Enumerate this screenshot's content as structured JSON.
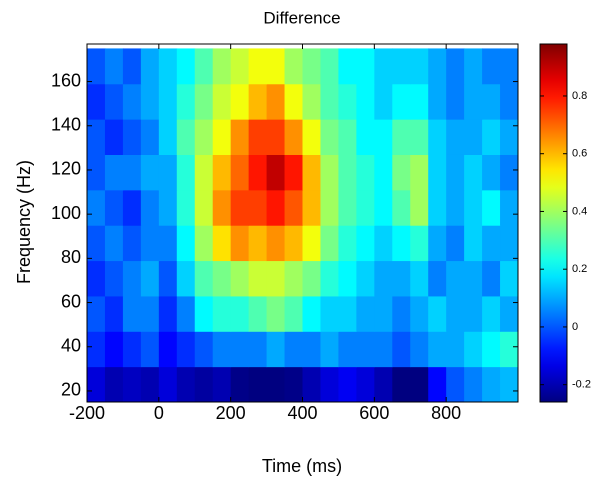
{
  "chart_data": {
    "type": "heatmap",
    "title": "Difference",
    "xlabel": "Time (ms)",
    "ylabel": "Frequency (Hz)",
    "colormap": "jet",
    "x": [
      -175,
      -125,
      -75,
      -25,
      25,
      75,
      125,
      175,
      225,
      275,
      325,
      375,
      425,
      475,
      525,
      575,
      625,
      675,
      725,
      775,
      825,
      875,
      925,
      975
    ],
    "y": [
      23,
      39,
      55,
      71,
      87,
      103,
      119,
      135,
      151,
      167
    ],
    "z": [
      [
        -0.15,
        -0.2,
        -0.18,
        -0.2,
        -0.15,
        -0.2,
        -0.22,
        -0.2,
        -0.25,
        -0.28,
        -0.28,
        -0.25,
        -0.2,
        -0.15,
        -0.12,
        -0.15,
        -0.2,
        -0.3,
        -0.28,
        -0.1,
        0.0,
        0.05,
        0.1,
        0.12
      ],
      [
        -0.05,
        -0.1,
        -0.05,
        0,
        -0.1,
        -0.05,
        0,
        0.05,
        0.05,
        0.05,
        0.1,
        0.05,
        0.05,
        0.1,
        0.05,
        0.05,
        0.05,
        0.0,
        0.05,
        0.1,
        0.1,
        0.15,
        0.2,
        0.25
      ],
      [
        0,
        -0.05,
        0.05,
        0.05,
        -0.05,
        0.05,
        0.2,
        0.25,
        0.25,
        0.3,
        0.35,
        0.3,
        0.2,
        0.15,
        0.15,
        0.1,
        0.1,
        0.05,
        0.1,
        0.15,
        0.1,
        0.1,
        0.15,
        0.1
      ],
      [
        -0.05,
        0,
        0.05,
        0.1,
        0,
        0.15,
        0.3,
        0.35,
        0.4,
        0.45,
        0.45,
        0.4,
        0.35,
        0.25,
        0.2,
        0.15,
        0.1,
        0.1,
        0.15,
        0.05,
        0.1,
        0.1,
        0.05,
        0.15
      ],
      [
        0,
        0.05,
        0,
        0.05,
        0.05,
        0.2,
        0.4,
        0.55,
        0.65,
        0.6,
        0.65,
        0.6,
        0.5,
        0.35,
        0.25,
        0.2,
        0.15,
        0.2,
        0.25,
        0.1,
        0.05,
        0.15,
        0.1,
        0.1
      ],
      [
        0.05,
        0,
        -0.05,
        0.05,
        0.1,
        0.25,
        0.45,
        0.65,
        0.75,
        0.75,
        0.8,
        0.72,
        0.6,
        0.4,
        0.3,
        0.25,
        0.2,
        0.3,
        0.4,
        0.15,
        0.1,
        0.15,
        0.2,
        0.1
      ],
      [
        0,
        0.05,
        0.05,
        0.1,
        0.1,
        0.25,
        0.45,
        0.6,
        0.7,
        0.8,
        0.9,
        0.8,
        0.6,
        0.4,
        0.3,
        0.25,
        0.2,
        0.35,
        0.4,
        0.15,
        0.1,
        0.15,
        0.1,
        0.05
      ],
      [
        0,
        -0.05,
        0,
        0.05,
        0.15,
        0.3,
        0.4,
        0.5,
        0.65,
        0.75,
        0.75,
        0.65,
        0.5,
        0.35,
        0.3,
        0.2,
        0.2,
        0.3,
        0.3,
        0.15,
        0.1,
        0.1,
        0.15,
        0.1
      ],
      [
        -0.05,
        0,
        0.05,
        0.1,
        0.15,
        0.25,
        0.35,
        0.45,
        0.5,
        0.6,
        0.65,
        0.5,
        0.4,
        0.3,
        0.25,
        0.2,
        0.15,
        0.2,
        0.2,
        0.1,
        0.05,
        0.1,
        0.1,
        0.05
      ],
      [
        0,
        0.05,
        0,
        0.1,
        0.15,
        0.2,
        0.3,
        0.4,
        0.45,
        0.5,
        0.5,
        0.4,
        0.35,
        0.3,
        0.2,
        0.2,
        0.15,
        0.15,
        0.15,
        0.1,
        0.05,
        0.1,
        0.05,
        0.05
      ]
    ],
    "xlim": [
      -200,
      1000
    ],
    "xticks": [
      -200,
      0,
      200,
      400,
      600,
      800
    ],
    "ylim": [
      15,
      177
    ],
    "yticks": [
      20,
      40,
      60,
      80,
      100,
      120,
      140,
      160
    ],
    "colorbar": {
      "clim": [
        -0.26,
        0.98
      ],
      "ticks": [
        -0.2,
        0,
        0.2,
        0.4,
        0.6,
        0.8
      ]
    }
  }
}
